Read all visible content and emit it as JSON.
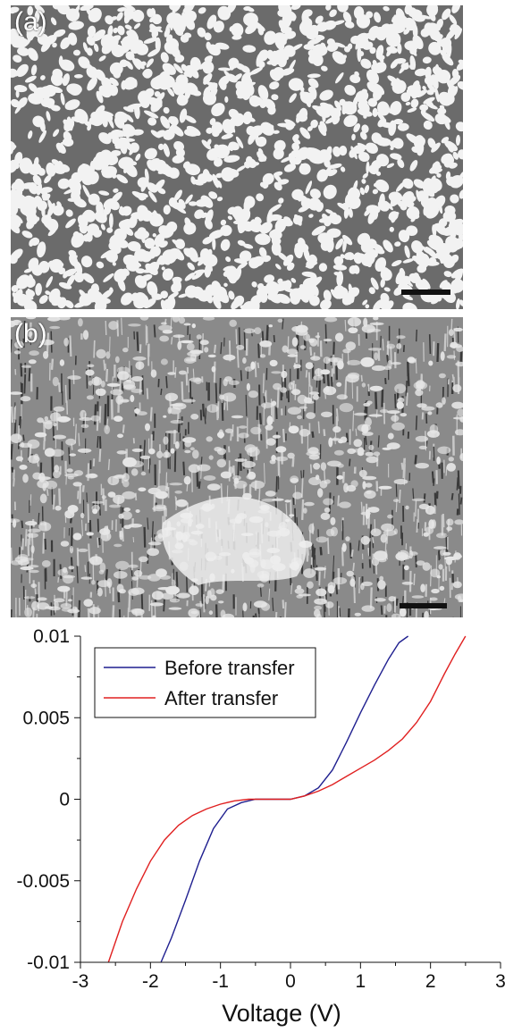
{
  "panel_a": {
    "label": "(a)"
  },
  "panel_b": {
    "label": "(b)"
  },
  "chart_data": {
    "type": "line",
    "xlabel": "Voltage (V)",
    "ylabel": "",
    "xlim": [
      -3,
      3
    ],
    "ylim": [
      -0.01,
      0.01
    ],
    "xticks": [
      "-3",
      "-2",
      "-1",
      "0",
      "1",
      "2",
      "3"
    ],
    "yticks": [
      "-0.01",
      "-0.005",
      "0",
      "0.005",
      "0.01"
    ],
    "legend_position": "top-left",
    "series": [
      {
        "name": "Before transfer",
        "color": "#1f1f8f",
        "x": [
          -1.85,
          -1.7,
          -1.5,
          -1.3,
          -1.1,
          -0.9,
          -0.7,
          -0.5,
          -0.3,
          0,
          0.2,
          0.4,
          0.6,
          0.8,
          1.0,
          1.2,
          1.4,
          1.55,
          1.68
        ],
        "y": [
          -0.01,
          -0.0085,
          -0.0062,
          -0.0038,
          -0.0018,
          -0.0006,
          -0.0002,
          0,
          0,
          0,
          0.0002,
          0.0007,
          0.0018,
          0.0035,
          0.0053,
          0.007,
          0.0086,
          0.0096,
          0.01
        ]
      },
      {
        "name": "After transfer",
        "color": "#e02020",
        "x": [
          -2.6,
          -2.4,
          -2.2,
          -2.0,
          -1.8,
          -1.6,
          -1.4,
          -1.2,
          -1.0,
          -0.8,
          -0.6,
          -0.4,
          -0.2,
          0,
          0.2,
          0.4,
          0.6,
          0.8,
          1.0,
          1.2,
          1.4,
          1.6,
          1.8,
          2.0,
          2.2,
          2.35,
          2.5
        ],
        "y": [
          -0.01,
          -0.0075,
          -0.0055,
          -0.0038,
          -0.0025,
          -0.0016,
          -0.001,
          -0.0006,
          -0.0003,
          -0.0001,
          0,
          0,
          0,
          0,
          0.0002,
          0.0005,
          0.0009,
          0.0014,
          0.0019,
          0.0024,
          0.003,
          0.0037,
          0.0047,
          0.006,
          0.0077,
          0.0089,
          0.01
        ]
      }
    ]
  }
}
